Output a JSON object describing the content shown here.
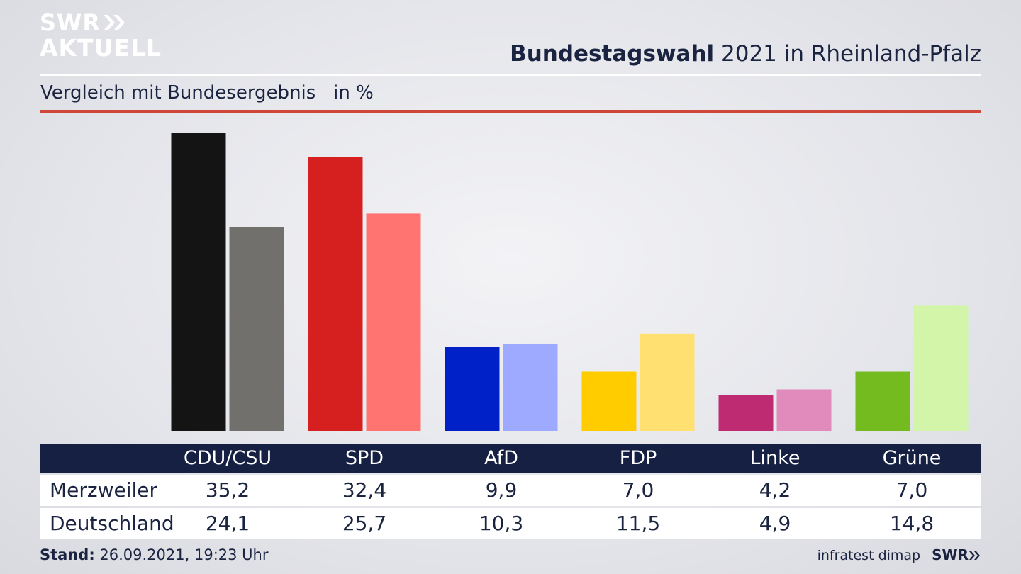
{
  "brand": {
    "line1": "SWR",
    "line2": "AKTUELL",
    "footer_brand": "SWR"
  },
  "header": {
    "title_bold": "Bundestagswahl",
    "title_rest": " 2021 in Rheinland-Pfalz",
    "subtitle": "Vergleich mit Bundesergebnis   in %"
  },
  "footer": {
    "stand_label": "Stand:",
    "stand_value": " 26.09.2021, 19:23 Uhr",
    "source": "infratest dimap"
  },
  "chart_data": {
    "type": "bar",
    "categories": [
      "CDU/CSU",
      "SPD",
      "AfD",
      "FDP",
      "Linke",
      "Grüne"
    ],
    "series": [
      {
        "name": "Merzweiler",
        "values": [
          35.2,
          32.4,
          9.9,
          7.0,
          4.2,
          7.0
        ],
        "colors": [
          "#141414",
          "#d61f1f",
          "#0021c7",
          "#ffcc00",
          "#be2b73",
          "#74bb1f"
        ]
      },
      {
        "name": "Deutschland",
        "values": [
          24.1,
          25.7,
          10.3,
          11.5,
          4.9,
          14.8
        ],
        "colors": [
          "#72706d",
          "#ff7471",
          "#9daaff",
          "#ffe070",
          "#e08bbc",
          "#d3f5a9"
        ]
      }
    ],
    "value_labels": [
      [
        "35,2",
        "32,4",
        "9,9",
        "7,0",
        "4,2",
        "7,0"
      ],
      [
        "24,1",
        "25,7",
        "10,3",
        "11,5",
        "4,9",
        "14,8"
      ]
    ],
    "ylim": [
      0,
      35.2
    ],
    "grid": false,
    "legend": "table-below"
  }
}
